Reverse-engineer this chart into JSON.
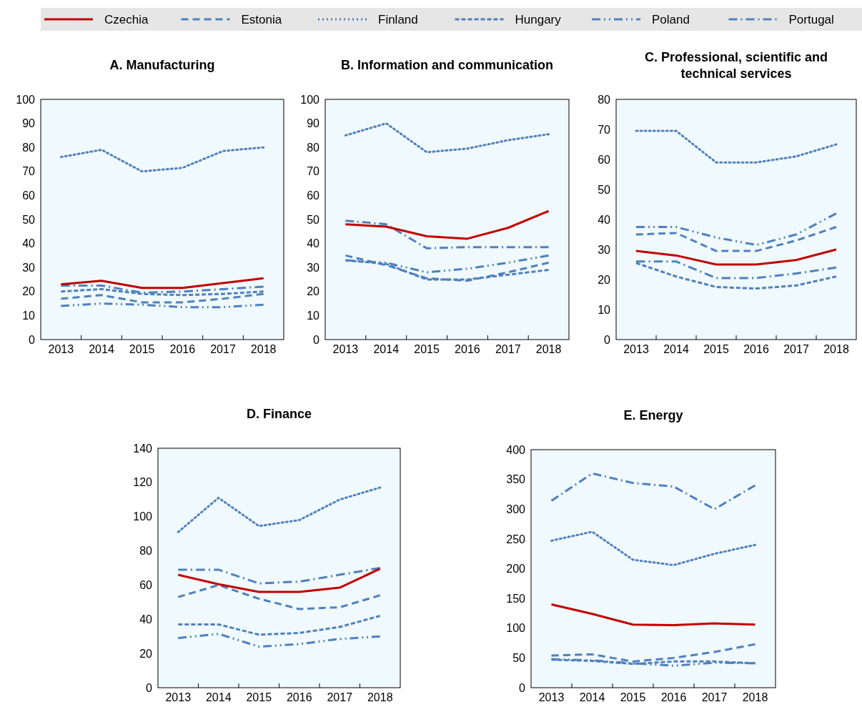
{
  "chart_data": [
    {
      "type": "line",
      "title": "A. Manufacturing",
      "categories": [
        "2013",
        "2014",
        "2015",
        "2016",
        "2017",
        "2018"
      ],
      "ylim": [
        0,
        100
      ],
      "yticks": [
        0,
        10,
        20,
        30,
        40,
        50,
        60,
        70,
        80,
        90,
        100
      ],
      "legend": "top",
      "series": [
        {
          "name": "Czechia",
          "color": "#c00000",
          "line_style": "solid",
          "values": [
            23,
            24.5,
            21.5,
            21.5,
            23.5,
            25.5
          ]
        },
        {
          "name": "Estonia",
          "color": "#4f81bd",
          "line_style": "dashed",
          "values": [
            17,
            18.5,
            15.5,
            15.5,
            17,
            19
          ]
        },
        {
          "name": "Finland",
          "color": "#4f81bd",
          "line_style": "dotted",
          "values": [
            76,
            79,
            70,
            71.5,
            78.5,
            80
          ]
        },
        {
          "name": "Hungary",
          "color": "#4f81bd",
          "line_style": "shortdash",
          "values": [
            20,
            21,
            19,
            18.5,
            19,
            20
          ]
        },
        {
          "name": "Poland",
          "color": "#4f81bd",
          "line_style": "dashdotdot",
          "values": [
            14,
            15,
            14.5,
            13.5,
            13.5,
            14.5
          ]
        },
        {
          "name": "Portugal",
          "color": "#4f81bd",
          "line_style": "dashdot",
          "values": [
            22.5,
            22.5,
            19.5,
            20,
            21,
            22
          ]
        }
      ]
    },
    {
      "type": "line",
      "title": "B. Information and communication",
      "categories": [
        "2013",
        "2014",
        "2015",
        "2016",
        "2017",
        "2018"
      ],
      "ylim": [
        0,
        100
      ],
      "yticks": [
        0,
        10,
        20,
        30,
        40,
        50,
        60,
        70,
        80,
        90,
        100
      ],
      "series": [
        {
          "color": "#c00000",
          "line_style": "solid",
          "values": [
            48,
            47,
            43,
            42,
            46.5,
            53.5
          ]
        },
        {
          "color": "#4f81bd",
          "line_style": "dashed",
          "values": [
            35,
            31,
            25.5,
            24.5,
            28,
            32
          ]
        },
        {
          "color": "#4f81bd",
          "line_style": "dotted",
          "values": [
            85,
            90,
            78,
            79.5,
            83,
            85.5
          ]
        },
        {
          "color": "#4f81bd",
          "line_style": "shortdash",
          "values": [
            33,
            31.5,
            25,
            25,
            27,
            29
          ]
        },
        {
          "color": "#4f81bd",
          "line_style": "dashdotdot",
          "values": [
            33,
            32,
            28,
            29.5,
            32,
            35
          ]
        },
        {
          "color": "#4f81bd",
          "line_style": "dashdot",
          "values": [
            49.5,
            48,
            38,
            38.5,
            38.5,
            38.5
          ]
        }
      ]
    },
    {
      "type": "line",
      "title": "C. Professional, scientific and technical services",
      "categories": [
        "2013",
        "2014",
        "2015",
        "2016",
        "2017",
        "2018"
      ],
      "ylim": [
        0,
        80
      ],
      "yticks": [
        0,
        10,
        20,
        30,
        40,
        50,
        60,
        70,
        80
      ],
      "series": [
        {
          "color": "#c00000",
          "line_style": "solid",
          "values": [
            29.5,
            28,
            25,
            25,
            26.5,
            30
          ]
        },
        {
          "color": "#4f81bd",
          "line_style": "dashed",
          "values": [
            35,
            35.5,
            29.5,
            29.5,
            33,
            37.5
          ]
        },
        {
          "color": "#4f81bd",
          "line_style": "dotted",
          "values": [
            69.5,
            69.5,
            59,
            59,
            61,
            65
          ]
        },
        {
          "color": "#4f81bd",
          "line_style": "shortdash",
          "values": [
            25.5,
            21,
            17.5,
            17,
            18,
            21
          ]
        },
        {
          "color": "#4f81bd",
          "line_style": "dashdotdot",
          "values": [
            37.5,
            37.5,
            34,
            31.5,
            35,
            42
          ]
        },
        {
          "color": "#4f81bd",
          "line_style": "dashdot",
          "values": [
            26,
            26,
            20.5,
            20.5,
            22,
            24
          ]
        }
      ]
    },
    {
      "type": "line",
      "title": "D. Finance",
      "categories": [
        "2013",
        "2014",
        "2015",
        "2016",
        "2017",
        "2018"
      ],
      "ylim": [
        0,
        140
      ],
      "yticks": [
        0,
        20,
        40,
        60,
        80,
        100,
        120,
        140
      ],
      "series": [
        {
          "color": "#c00000",
          "line_style": "solid",
          "values": [
            66,
            60.5,
            56,
            56,
            58.5,
            69.5
          ]
        },
        {
          "color": "#4f81bd",
          "line_style": "dashed",
          "values": [
            53,
            60,
            52,
            46,
            47,
            54
          ]
        },
        {
          "color": "#4f81bd",
          "line_style": "dotted",
          "values": [
            91,
            111,
            94.5,
            98,
            110,
            117
          ]
        },
        {
          "color": "#4f81bd",
          "line_style": "shortdash",
          "values": [
            37,
            37,
            31,
            32,
            35.5,
            42
          ]
        },
        {
          "color": "#4f81bd",
          "line_style": "dashdotdot",
          "values": [
            29,
            31.5,
            24,
            25.5,
            28.5,
            30
          ]
        },
        {
          "color": "#4f81bd",
          "line_style": "dashdot",
          "values": [
            69,
            69,
            61,
            62,
            66,
            70
          ]
        }
      ]
    },
    {
      "type": "line",
      "title": "E. Energy",
      "categories": [
        "2013",
        "2014",
        "2015",
        "2016",
        "2017",
        "2018"
      ],
      "ylim": [
        0,
        400
      ],
      "yticks": [
        0,
        50,
        100,
        150,
        200,
        250,
        300,
        350,
        400
      ],
      "series": [
        {
          "color": "#c00000",
          "line_style": "solid",
          "values": [
            140,
            124,
            106,
            105,
            108,
            106
          ]
        },
        {
          "color": "#4f81bd",
          "line_style": "dashed",
          "values": [
            54,
            56,
            44,
            50,
            60,
            73
          ]
        },
        {
          "color": "#4f81bd",
          "line_style": "dotted",
          "values": [
            247,
            262,
            215,
            206,
            225,
            240
          ]
        },
        {
          "color": "#4f81bd",
          "line_style": "shortdash",
          "values": [
            47,
            45,
            40,
            44,
            44,
            41
          ]
        },
        {
          "color": "#4f81bd",
          "line_style": "dashdotdot",
          "values": [
            48,
            46,
            41,
            37,
            42,
            41
          ]
        },
        {
          "color": "#4f81bd",
          "line_style": "dashdot",
          "values": [
            314,
            360,
            344,
            338,
            300,
            340
          ]
        }
      ]
    }
  ]
}
